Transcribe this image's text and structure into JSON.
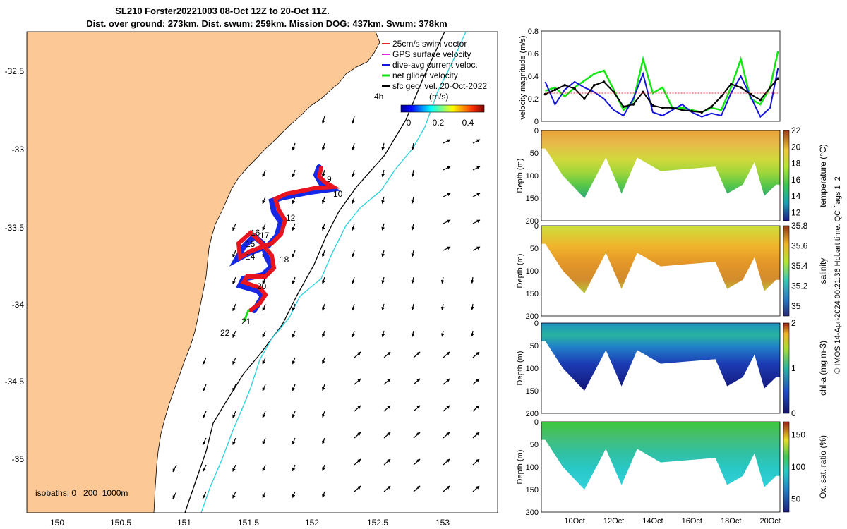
{
  "title": {
    "line1": "SL210 Forster20221003 08-Oct 12Z to 20-Oct 11Z.",
    "line2": "Dist. over ground: 273km. Dist. swum: 259km. Mission DOG: 437km. Swum: 378km"
  },
  "credit": "© IMOS 14-Apr-2024 00:21:36 Hobart time. QC flags 1  2",
  "colors": {
    "land": "#fcc896",
    "glider_track_fwd": "#e8141e",
    "glider_track_back": "#1428e6",
    "isobath_200": "#000000",
    "isobath_1000": "#28d2dc",
    "velocity_net": "#14e614",
    "velocity_dac": "#1414dc",
    "velocity_geo": "#000000",
    "velocity_ref": "#e82828"
  },
  "map": {
    "x_ticks": [
      "150",
      "150.5",
      "151",
      "151.5",
      "152",
      "152.5",
      "153"
    ],
    "y_ticks": [
      "-32.5",
      "-33",
      "-33.5",
      "-34",
      "-34.5",
      "-35"
    ],
    "legend": [
      {
        "label": "25cm/s swim vector",
        "icon": "red-arrow-icon"
      },
      {
        "label": "GPS surface velocity",
        "icon": "magenta-arrow-icon"
      },
      {
        "label": "dive-avg current veloc.",
        "icon": "blue-arrow-icon"
      },
      {
        "label": "net glider velocity",
        "icon": "green-dash-icon"
      },
      {
        "label": "sfc geo. vel. 20-Oct-2022",
        "icon": "black-arrow-icon"
      }
    ],
    "interval_label": "4h",
    "colorbar_unit": "(m/s)",
    "colorbar_ticks": [
      "0",
      "0.2",
      "0.4"
    ],
    "isobath_label": "isobaths: 0   200  1000m",
    "day_labels": [
      "9",
      "10",
      "12",
      "16",
      "17",
      "15",
      "14",
      "18",
      "20",
      "21",
      "22"
    ]
  },
  "chart_data": [
    {
      "type": "line",
      "title": "velocity magnitude",
      "ylabel": "velocity magnitude (m/s)",
      "ylim": [
        0,
        0.8
      ],
      "y_ticks": [
        "0",
        "0.2",
        "0.4",
        "0.6",
        "0.8"
      ],
      "x": [
        8.5,
        9,
        9.5,
        10,
        10.5,
        11,
        11.5,
        12,
        12.5,
        13,
        13.5,
        14,
        14.5,
        15,
        15.5,
        16,
        16.5,
        17,
        17.5,
        18,
        18.5,
        19,
        19.5,
        20,
        20.4
      ],
      "series": [
        {
          "name": "net glider velocity",
          "values": [
            0.27,
            0.3,
            0.22,
            0.3,
            0.36,
            0.42,
            0.45,
            0.28,
            0.1,
            0.18,
            0.55,
            0.25,
            0.3,
            0.12,
            0.12,
            0.1,
            0.08,
            0.12,
            0.1,
            0.3,
            0.55,
            0.2,
            0.15,
            0.3,
            0.62
          ]
        },
        {
          "name": "dive-avg current veloc.",
          "values": [
            0.35,
            0.15,
            0.28,
            0.35,
            0.3,
            0.26,
            0.2,
            0.1,
            0.05,
            0.2,
            0.42,
            0.08,
            0.05,
            0.1,
            0.15,
            0.08,
            0.04,
            0.07,
            0.05,
            0.25,
            0.4,
            0.22,
            0.04,
            0.12,
            0.47
          ]
        },
        {
          "name": "sfc geo. vel.",
          "values": [
            0.24,
            0.28,
            0.32,
            0.29,
            0.2,
            0.32,
            0.35,
            0.26,
            0.13,
            0.15,
            0.26,
            0.14,
            0.12,
            0.12,
            0.1,
            0.09,
            0.08,
            0.13,
            0.22,
            0.33,
            0.3,
            0.24,
            0.19,
            0.3,
            0.38
          ]
        },
        {
          "name": "25cm/s reference",
          "values": [
            0.25,
            0.25,
            0.25,
            0.25,
            0.25,
            0.25,
            0.25,
            0.25,
            0.25,
            0.25,
            0.25,
            0.25,
            0.25,
            0.25,
            0.25,
            0.25,
            0.25,
            0.25,
            0.25,
            0.25,
            0.25,
            0.25,
            0.25,
            0.25,
            0.25
          ]
        }
      ]
    },
    {
      "type": "heatmap",
      "title": "temperature",
      "colorbar_label": "temperature (°C)",
      "ylabel": "Depth (m)",
      "y_ticks": [
        "0",
        "50",
        "100",
        "150",
        "200"
      ],
      "ylim": [
        200,
        0
      ],
      "colorbar_ticks": [
        "22",
        "20",
        "18",
        "16",
        "14",
        "12"
      ],
      "crange": [
        11,
        22
      ],
      "x": [
        8.5,
        9.4,
        10.5,
        11.6,
        12.4,
        13.2,
        14.4,
        15.8,
        17.2,
        17.8,
        18.6,
        19.2,
        19.7,
        20.3
      ],
      "bottom_depth": [
        40,
        100,
        150,
        60,
        140,
        60,
        90,
        85,
        80,
        140,
        120,
        70,
        145,
        120
      ]
    },
    {
      "type": "heatmap",
      "title": "salinity",
      "colorbar_label": "salinity",
      "ylabel": "Depth (m)",
      "y_ticks": [
        "0",
        "50",
        "100",
        "150",
        "200"
      ],
      "ylim": [
        200,
        0
      ],
      "colorbar_ticks": [
        "35.8",
        "35.6",
        "35.4",
        "35.2",
        "35"
      ],
      "crange": [
        34.9,
        35.8
      ],
      "x": [
        8.5,
        9.4,
        10.5,
        11.6,
        12.4,
        13.2,
        14.4,
        15.8,
        17.2,
        17.8,
        18.6,
        19.2,
        19.7,
        20.3
      ],
      "bottom_depth": [
        40,
        100,
        150,
        60,
        140,
        60,
        90,
        85,
        80,
        140,
        120,
        70,
        145,
        120
      ]
    },
    {
      "type": "heatmap",
      "title": "chl-a",
      "colorbar_label": "chl-a (mg m-3)",
      "ylabel": "Depth (m)",
      "y_ticks": [
        "0",
        "50",
        "100",
        "150",
        "200"
      ],
      "ylim": [
        200,
        0
      ],
      "colorbar_ticks": [
        "2",
        "1",
        "0"
      ],
      "crange": [
        0,
        2
      ],
      "x": [
        8.5,
        9.4,
        10.5,
        11.6,
        12.4,
        13.2,
        14.4,
        15.8,
        17.2,
        17.8,
        18.6,
        19.2,
        19.7,
        20.3
      ],
      "bottom_depth": [
        40,
        100,
        150,
        60,
        140,
        60,
        90,
        85,
        80,
        140,
        120,
        70,
        145,
        120
      ]
    },
    {
      "type": "heatmap",
      "title": "Ox. sat. ratio",
      "colorbar_label": "Ox. sat. ratio (%)",
      "ylabel": "Depth (m)",
      "y_ticks": [
        "0",
        "50",
        "100",
        "150",
        "200"
      ],
      "ylim": [
        200,
        0
      ],
      "colorbar_ticks": [
        "150",
        "100",
        "50"
      ],
      "crange": [
        30,
        170
      ],
      "x": [
        8.5,
        9.4,
        10.5,
        11.6,
        12.4,
        13.2,
        14.4,
        15.8,
        17.2,
        17.8,
        18.6,
        19.2,
        19.7,
        20.3
      ],
      "bottom_depth": [
        40,
        100,
        150,
        60,
        140,
        60,
        90,
        85,
        80,
        140,
        120,
        70,
        145,
        120
      ],
      "x_ticks": [
        "10Oct",
        "12Oct",
        "14Oct",
        "16Oct",
        "18Oct",
        "20Oct"
      ]
    }
  ]
}
